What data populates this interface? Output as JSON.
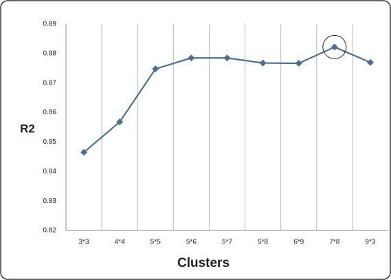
{
  "chart_data": {
    "type": "line",
    "categories": [
      "3*3",
      "4*4",
      "5*5",
      "5*6",
      "5*7",
      "5*8",
      "6*9",
      "7*8",
      "9*3"
    ],
    "series": [
      {
        "name": "R2",
        "color": "#4a6f95",
        "values": [
          0.8465,
          0.8568,
          0.8748,
          0.8785,
          0.8785,
          0.8768,
          0.8767,
          0.8822,
          0.877
        ]
      }
    ],
    "ylim": [
      0.82,
      0.89
    ],
    "yticks": [
      0.82,
      0.83,
      0.84,
      0.85,
      0.86,
      0.87,
      0.88,
      0.89
    ],
    "ylabel": "R2",
    "xlabel": "Clusters"
  }
}
